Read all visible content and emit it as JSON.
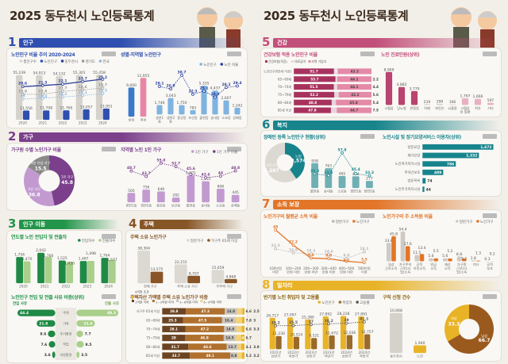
{
  "pages": [
    {
      "title": "2025 동두천시 노인등록통계"
    },
    {
      "title": "2025 동두천시 노인등록통계"
    }
  ],
  "sections": [
    {
      "num": "1",
      "label": "인구",
      "color": "#2f4fb0"
    },
    {
      "num": "2",
      "label": "가구",
      "color": "#7b3f8c"
    },
    {
      "num": "3",
      "label": "인구 이동",
      "color": "#23954a"
    },
    {
      "num": "4",
      "label": "주택",
      "color": "#875626"
    },
    {
      "num": "5",
      "label": "건강",
      "color": "#c24f7a"
    },
    {
      "num": "6",
      "label": "복지",
      "color": "#17848c"
    },
    {
      "num": "7",
      "label": "소득 보장",
      "color": "#e27528"
    },
    {
      "num": "8",
      "label": "일자리",
      "color": "#e9b327"
    }
  ],
  "chart_data": [
    {
      "id": "c1",
      "type": "combo",
      "title": "노인인구 비율 추이 2020-2024",
      "title_color": "#2f4fb0",
      "categories": [
        "2020",
        "2021",
        "2022",
        "2023",
        "2024"
      ],
      "line_ylim": [
        0,
        32
      ],
      "series": [
        {
          "name": "총인구수",
          "kind": "bar",
          "color": "#d5d2cc",
          "values": [
            55239,
            54913,
            54132,
            55301,
            55458
          ]
        },
        {
          "name": "노인인구",
          "kind": "bar",
          "color": "#2f4fb0",
          "values": [
            11556,
            11708,
            11769,
            13057,
            13951
          ]
        },
        {
          "name": "동두천시",
          "kind": "line",
          "color": "#2b3f9c",
          "values": [
            20.6,
            21.3,
            22.1,
            23.7,
            25.2
          ]
        },
        {
          "name": "경기도",
          "kind": "line",
          "color": "#999999",
          "dash": true,
          "values": [
            15.9,
            15.8,
            17.7,
            18.6,
            19.7
          ]
        },
        {
          "name": "전국",
          "kind": "line",
          "color": "#8fb8e0",
          "dash": true,
          "values": [
            13.0,
            13.4,
            14.2,
            15.1,
            16.3
          ]
        }
      ]
    },
    {
      "id": "c2a",
      "type": "combo",
      "title": "",
      "categories": [
        "남성",
        "여성"
      ],
      "bar_ylim": [
        0,
        13000
      ],
      "series": [
        {
          "kind": "bar",
          "color": "#3a78c9",
          "values": [
            9000,
            11955
          ],
          "colors": [
            "#3a78c9",
            "#e985a6"
          ]
        }
      ]
    },
    {
      "id": "c2",
      "type": "combo",
      "title": "성별·지역별 노인인구",
      "title_color": "#2f4fb0",
      "categories": [
        "생연1동",
        "생연2동",
        "중앙동",
        "보산동",
        "불현동",
        "송내동",
        "소요동",
        "상패동"
      ],
      "bar_ylim": [
        0,
        8000
      ],
      "line_ylim": [
        5,
        42
      ],
      "series": [
        {
          "name": "노인인구",
          "kind": "bar",
          "color": "#7fb3e0",
          "values": [
            1746,
            3043,
            1750,
            783,
            5335,
            4437,
            2607,
            1242
          ]
        },
        {
          "name": "노인 비율",
          "kind": "line",
          "color": "#2b3f9c",
          "dash": true,
          "values": [
            29.1,
            26.9,
            38.7,
            22.3,
            25.1,
            19.9,
            28.2,
            29.4
          ]
        }
      ]
    },
    {
      "id": "c3",
      "type": "donut",
      "title": "가구원 수별 노인가구 비율",
      "title_color": "#7b3f8c",
      "labels": [
        "1인 가구",
        "2인 가구",
        "3인 이상 가구"
      ],
      "values": [
        45.8,
        36.8,
        15.5
      ],
      "colors": [
        "#7b3f8c",
        "#c29ad0",
        "#8a8a8a"
      ]
    },
    {
      "id": "c4",
      "type": "combo",
      "title": "지역별 노인 1인 가구",
      "title_color": "#7b3f8c",
      "categories": [
        "생연1동",
        "생연2동",
        "중앙동",
        "보산동",
        "불현동",
        "송내동",
        "소요동",
        "상패동"
      ],
      "bar_ylim": [
        0,
        2600
      ],
      "line_ylim": [
        20,
        60
      ],
      "series": [
        {
          "name": "1인 가구",
          "kind": "bar",
          "color": "#c29ad0",
          "values": [
            560,
            756,
            649,
            282,
            1601,
            1255,
            808,
            445
          ]
        },
        {
          "name": "1인 가구 비율",
          "kind": "line",
          "color": "#7b3f8c",
          "dash": true,
          "values": [
            48.7,
            43.7,
            55.8,
            52.7,
            45.6,
            42.6,
            44.0,
            48.8
          ]
        }
      ]
    },
    {
      "id": "c5",
      "type": "combo",
      "title": "연도별 노인 전입자 및 전출자",
      "title_color": "#23954a",
      "categories": [
        "2020",
        "2021",
        "2022",
        "2023",
        "2024"
      ],
      "bar_ylim": [
        0,
        2400
      ],
      "series": [
        {
          "name": "전입자수",
          "kind": "bar",
          "color": "#1f8a45",
          "values": [
            1756,
            2042,
            1525,
            1487,
            1704
          ]
        },
        {
          "name": "전출자수",
          "kind": "bar",
          "color": "#a9cf8a",
          "values": [
            1470,
            1766,
            1430,
            1498,
            1577
          ]
        }
      ]
    },
    {
      "id": "c6",
      "type": "butterfly",
      "title": "노인인구 전입 및 전출 사유 비중(상위)",
      "title_color": "#23954a",
      "left_name": "전입 사유",
      "right_name": "전출 사유",
      "categories": [
        "주택",
        "가족",
        "주거환경",
        "직업",
        "자연환경"
      ],
      "left": [
        44.4,
        21.8,
        8.6,
        7.6,
        3.6
      ],
      "right": [
        49.2,
        21.6,
        7.7,
        8.5,
        3.5
      ],
      "colors": [
        "#1f8a45",
        "#a9cf8a"
      ]
    },
    {
      "id": "c7",
      "type": "combo",
      "title": "주택 소유 노인가구",
      "title_color": "#875626",
      "categories": [
        "전체 가구",
        "주택 소유 가구",
        "무주택 가구"
      ],
      "bar_ylim": [
        0,
        42000
      ],
      "series": [
        {
          "name": "일반가구",
          "kind": "bar",
          "color": "#dcd8d2",
          "values": [
            38304,
            22155,
            15659
          ]
        },
        {
          "name": "가구주 65세 이상",
          "kind": "bar",
          "color": "#8a5526",
          "values": [
            13575,
            8707,
            4868
          ]
        }
      ]
    },
    {
      "id": "c8",
      "type": "stacked_hbar",
      "title": "주택자산 가액별 주택 소유 노인가구 비중",
      "title_color": "#875626",
      "segments": [
        "1억원 이하",
        "1~3억원 이하",
        "3~6억원 이하",
        "6~9억원 이하",
        "9억원 초과"
      ],
      "colors": [
        "#6b4423",
        "#b0702e",
        "#c9c4bc",
        "#f2d27a",
        "#e9b327"
      ],
      "categories": [
        "가구주 65세 이상",
        "65~69세",
        "70~74세",
        "75~79세",
        "80~84세",
        "85세 이상"
      ],
      "rows": [
        [
          28.8,
          47.3,
          14.8,
          6.6,
          2.5
        ],
        [
          25.3,
          47.5,
          16.4,
          7.8,
          3.0
        ],
        [
          28.1,
          47.2,
          14.8,
          6.6,
          3.3
        ],
        [
          28.0,
          46.8,
          14.5,
          6.7,
          4.0
        ],
        [
          31.7,
          46.6,
          13.7,
          4.1,
          3.9
        ],
        [
          33.7,
          49.1,
          8.8,
          5.2,
          3.2
        ]
      ]
    },
    {
      "id": "c9",
      "type": "stacked_hbar",
      "title": "건강보험 적용 노인인구 비율",
      "title_color": "#c24f7a",
      "segments": [
        "건강보험(직장)",
        "의료급여",
        "지역 가입자"
      ],
      "colors": [
        "#a8325e",
        "#e7d6dd",
        "#e58aa9"
      ],
      "categories": [
        "노인인구(65세 이상)",
        "65~69세",
        "70~74세",
        "75~79세",
        "80~84세",
        "85세 이상"
      ],
      "rows": [
        [
          51.7,
          5.0,
          43.3
        ],
        [
          53.7,
          2.2,
          44.1
        ],
        [
          51.5,
          4.4,
          44.1
        ],
        [
          52.2,
          5.6,
          42.2
        ],
        [
          48.8,
          5.4,
          45.8
        ],
        [
          47.8,
          7.5,
          44.7
        ]
      ]
    },
    {
      "id": "c10",
      "type": "combo",
      "title": "노인 진료인원(상위)",
      "title_color": "#c24f7a",
      "categories": [
        "고혈압",
        "당뇨병",
        "관절염",
        "치매",
        "파킨슨",
        "뇌졸중",
        "고혈압성 질환",
        "척추",
        "기타"
      ],
      "bar_ylim": [
        0,
        10000
      ],
      "series": [
        {
          "kind": "bar",
          "color": "#b8446f",
          "values": [
            8969,
            4882,
            3779,
            219,
            299,
            166,
            1797,
            1666,
            597
          ],
          "colors": [
            "#b8446f",
            "#b8446f",
            "#b8446f",
            "#d9cbd0",
            "#d9cbd0",
            "#d9cbd0",
            "#eab0c4",
            "#eab0c4",
            "#eab0c4"
          ]
        }
      ]
    },
    {
      "id": "c11a",
      "type": "donut",
      "title": "장애인 등록 노인인구 현황(상위)",
      "title_color": "#17848c",
      "labels": [
        "노인",
        "비노인"
      ],
      "values": [
        3574,
        5287
      ],
      "colors": [
        "#17848c",
        "#dcd8d2"
      ]
    },
    {
      "id": "c11",
      "type": "combo",
      "title": "",
      "categories": [
        "불현동",
        "송내동",
        "소요동",
        "생연1동",
        "생연2동"
      ],
      "bar_ylim": [
        0,
        1500
      ],
      "line_ylim": [
        20,
        62
      ],
      "series": [
        {
          "name": "장애인 등록 인구",
          "kind": "bar",
          "color": "#6fb0b4",
          "values": [
            958,
            763,
            465,
            454,
            277
          ]
        },
        {
          "name": "장애인 등록 비율",
          "kind": "line",
          "color": "#17848c",
          "dash": true,
          "values": [
            35.3,
            33.5,
            57.8,
            35.4,
            33.3
          ]
        }
      ]
    },
    {
      "id": "c12",
      "type": "hbar",
      "title": "노인시설 및 장기요양서비스 이용자(상위)",
      "title_color": "#17848c",
      "color": "#17848c",
      "categories": [
        "방문요양",
        "재가요양",
        "노인여가복지시설",
        "주야간보호",
        "방문목욕",
        "노인주거복지시설"
      ],
      "values": [
        1672,
        1332,
        786,
        489,
        74,
        44
      ]
    },
    {
      "id": "c13",
      "type": "combo",
      "title": "노인가구의 월평균 소득 비율",
      "title_color": "#e27528",
      "categories": [
        "100만원 미만",
        "100~200만원 미만",
        "200~300만원 미만",
        "300~400만원 미만",
        "400~500만원 미만",
        "500만원 이상"
      ],
      "line_ylim": [
        0,
        50
      ],
      "series": [
        {
          "name": "일반가구",
          "kind": "line",
          "color": "#b5b5b5",
          "dash": true,
          "values": [
            22.3,
            16.8,
            15.3,
            14.6,
            8.8,
            18.1
          ]
        },
        {
          "name": "노인가구",
          "kind": "line",
          "color": "#e27528",
          "values": [
            48.0,
            27.2,
            9.6,
            8.8,
            5.2,
            3.5
          ]
        }
      ]
    },
    {
      "id": "c14",
      "type": "combo",
      "title": "노인가구의 주 소득원 비율",
      "title_color": "#e27528",
      "categories": [
        "일상 근로소득",
        "가구주의 근로(사업)소득",
        "공적 이전소득",
        "연금 소득",
        "재산 소득",
        "가구원 근로(사업)소득",
        "기타",
        "공적 부조"
      ],
      "bar_ylim": [
        0,
        60
      ],
      "series": [
        {
          "name": "일반가구",
          "kind": "bar",
          "color": "#cfcac3",
          "values": [
            33.6,
            54.4,
            11.5,
            5.6,
            5.6,
            8.8,
            1.8,
            0.3
          ]
        },
        {
          "name": "노인가구",
          "kind": "bar",
          "color": "#e27528",
          "values": [
            45.8,
            27.6,
            13.4,
            5.5,
            5.2,
            5.2,
            1.3,
            0.2
          ]
        }
      ]
    },
    {
      "id": "c15",
      "type": "combo",
      "title": "반기별 노인 취업자 및 고용률",
      "title_color": "#8a6410",
      "categories": [
        "2022년 상반기",
        "2022년 하반기",
        "2023년 상반기",
        "2023년 하반기",
        "2024년 상반기",
        "2024년 하반기"
      ],
      "bar_ylim": [
        0,
        34000
      ],
      "line_ylim": [
        0,
        60
      ],
      "series": [
        {
          "name": "노인인구",
          "kind": "bar",
          "color": "#e9b327",
          "values": [
            26717,
            27097,
            25380,
            27892,
            28228,
            27891
          ]
        },
        {
          "name": "취업자",
          "kind": "bar",
          "color": "#9a6a2a",
          "values": [
            11230,
            10514,
            9521,
            11672,
            12036,
            12757
          ]
        },
        {
          "name": "고용률",
          "kind": "line",
          "color": "#555555",
          "dash": true,
          "values": [
            35.2,
            35.5,
            37.0,
            38.2,
            39.0,
            41.1
          ]
        }
      ]
    },
    {
      "id": "c16a",
      "type": "combo",
      "title": "구직 신청 건수",
      "title_color": "#8a6410",
      "categories": [
        "동두천시",
        "노인"
      ],
      "bar_ylim": [
        0,
        11000
      ],
      "series": [
        {
          "kind": "bar",
          "color": "#d5d2cc",
          "values": [
            10068,
            1940
          ],
          "colors": [
            "#d5d2cc",
            "#e9b327"
          ]
        }
      ]
    },
    {
      "id": "c16",
      "type": "donut",
      "title": "",
      "labels": [
        "남성",
        "여성"
      ],
      "values": [
        66.7,
        33.3
      ],
      "colors": [
        "#9a5a1e",
        "#e9b327"
      ]
    }
  ]
}
